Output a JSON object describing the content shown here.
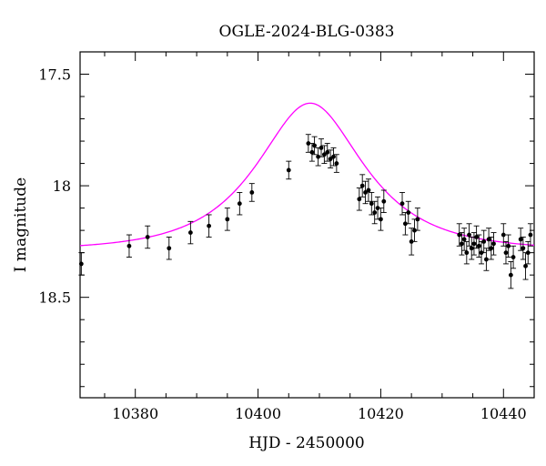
{
  "chart_data": {
    "type": "scatter",
    "title": "OGLE-2024-BLG-0383",
    "xlabel": "HJD - 2450000",
    "ylabel": "I magnitude",
    "xlim": [
      10371,
      10445
    ],
    "ylim": [
      18.95,
      17.4
    ],
    "y_inverted": true,
    "grid": false,
    "legend": "none",
    "x_ticks": [
      10380,
      10400,
      10420,
      10440
    ],
    "x_tick_labels": [
      "10380",
      "10400",
      "10420",
      "10440"
    ],
    "y_ticks": [
      17.5,
      18,
      18.5
    ],
    "y_tick_labels": [
      "17.5",
      "18",
      "18.5"
    ],
    "colors": {
      "data": "#000000",
      "model": "#ff00ff"
    },
    "model": {
      "name": "",
      "t0": 10408.5,
      "tE": 13.5,
      "u0": 0.62,
      "baseline_mag": 18.29,
      "blend_fraction": 1.0
    },
    "series": [
      {
        "name": "",
        "x": [
          10371.2,
          10379.0,
          10382.0,
          10385.5,
          10389.0,
          10392.0,
          10395.0,
          10397.0,
          10399.0,
          10405.0,
          10408.2,
          10408.8,
          10409.2,
          10409.8,
          10410.3,
          10410.8,
          10411.3,
          10411.8,
          10412.3,
          10412.8,
          10416.5,
          10417.0,
          10417.5,
          10418.0,
          10418.5,
          10419.0,
          10419.5,
          10420.0,
          10420.5,
          10423.5,
          10424.0,
          10424.5,
          10425.0,
          10425.5,
          10426.0,
          10432.8,
          10433.2,
          10433.6,
          10434.0,
          10434.4,
          10434.8,
          10435.2,
          10435.6,
          10436.0,
          10436.4,
          10436.8,
          10437.2,
          10437.6,
          10438.0,
          10438.4,
          10440.0,
          10440.4,
          10440.8,
          10441.2,
          10441.6,
          10442.8,
          10443.2,
          10443.6,
          10444.0,
          10444.4
        ],
        "y": [
          18.35,
          18.27,
          18.23,
          18.28,
          18.21,
          18.18,
          18.15,
          18.08,
          18.03,
          17.93,
          17.81,
          17.85,
          17.82,
          17.87,
          17.83,
          17.86,
          17.85,
          17.88,
          17.87,
          17.9,
          18.06,
          18.0,
          18.03,
          18.02,
          18.08,
          18.12,
          18.1,
          18.15,
          18.07,
          18.08,
          18.17,
          18.12,
          18.25,
          18.2,
          18.15,
          18.22,
          18.26,
          18.24,
          18.3,
          18.22,
          18.28,
          18.26,
          18.23,
          18.27,
          18.3,
          18.25,
          18.33,
          18.24,
          18.28,
          18.26,
          18.22,
          18.3,
          18.27,
          18.4,
          18.32,
          18.24,
          18.28,
          18.36,
          18.3,
          18.22
        ],
        "yerr": [
          0.05,
          0.05,
          0.05,
          0.05,
          0.05,
          0.05,
          0.05,
          0.05,
          0.04,
          0.04,
          0.04,
          0.04,
          0.04,
          0.04,
          0.04,
          0.04,
          0.04,
          0.04,
          0.04,
          0.04,
          0.05,
          0.05,
          0.05,
          0.05,
          0.05,
          0.05,
          0.05,
          0.05,
          0.05,
          0.05,
          0.05,
          0.05,
          0.06,
          0.05,
          0.05,
          0.05,
          0.05,
          0.05,
          0.05,
          0.05,
          0.05,
          0.05,
          0.05,
          0.05,
          0.05,
          0.05,
          0.05,
          0.05,
          0.05,
          0.05,
          0.05,
          0.05,
          0.05,
          0.06,
          0.05,
          0.05,
          0.05,
          0.06,
          0.05,
          0.05
        ]
      }
    ]
  }
}
